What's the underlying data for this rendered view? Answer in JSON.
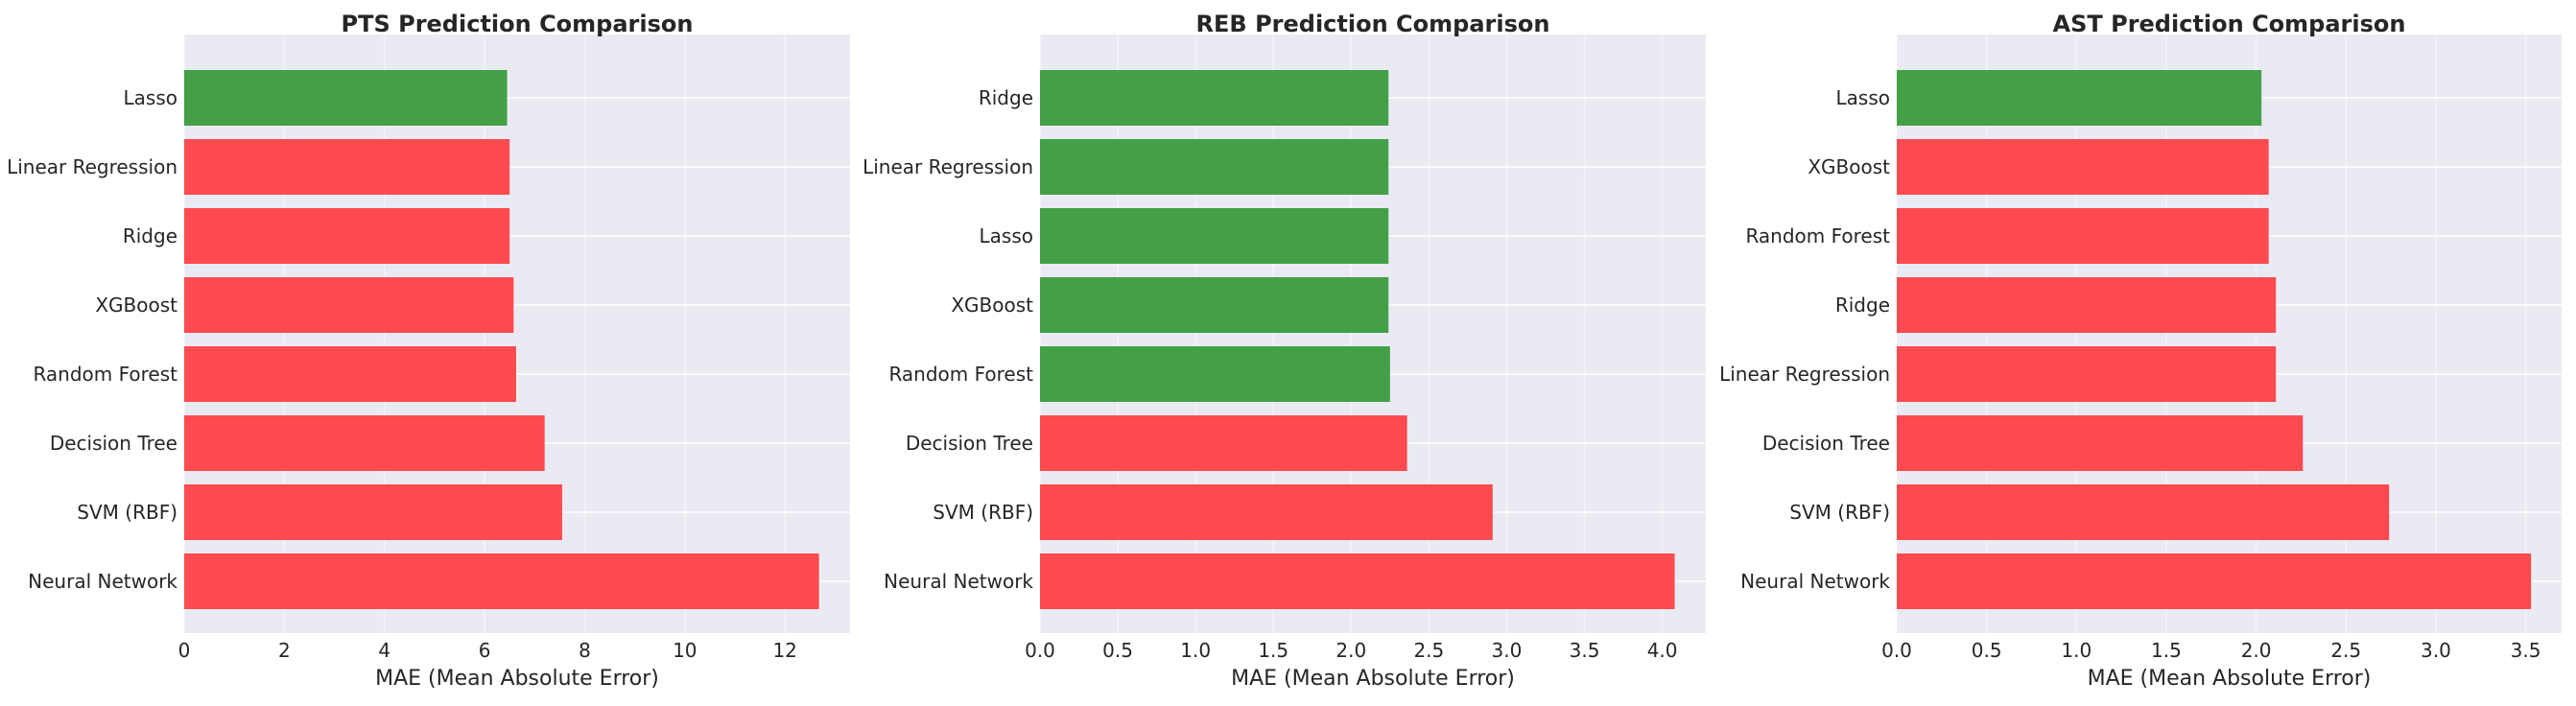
{
  "colors": {
    "best": "#43a047",
    "other": "#ff4a4f",
    "plot_bg": "#eaeaf2",
    "grid": "#ffffff",
    "text": "#262626"
  },
  "chart_data": [
    {
      "type": "bar",
      "orientation": "horizontal",
      "title": "PTS Prediction Comparison",
      "xlabel": "MAE (Mean Absolute Error)",
      "categories": [
        "Lasso",
        "Linear Regression",
        "Ridge",
        "XGBoost",
        "Random Forest",
        "Decision Tree",
        "SVM (RBF)",
        "Neural Network"
      ],
      "values": [
        6.45,
        6.5,
        6.5,
        6.58,
        6.63,
        7.2,
        7.55,
        12.68
      ],
      "highlight": [
        true,
        false,
        false,
        false,
        false,
        false,
        false,
        false
      ],
      "xlim": [
        0,
        13.3
      ],
      "xticks": [
        0,
        2,
        4,
        6,
        8,
        10,
        12
      ],
      "xtick_labels": [
        "0",
        "2",
        "4",
        "6",
        "8",
        "10",
        "12"
      ],
      "grid": true
    },
    {
      "type": "bar",
      "orientation": "horizontal",
      "title": "REB Prediction Comparison",
      "xlabel": "MAE (Mean Absolute Error)",
      "categories": [
        "Ridge",
        "Linear Regression",
        "Lasso",
        "XGBoost",
        "Random Forest",
        "Decision Tree",
        "SVM (RBF)",
        "Neural Network"
      ],
      "values": [
        2.24,
        2.24,
        2.24,
        2.24,
        2.25,
        2.36,
        2.91,
        4.08
      ],
      "highlight": [
        true,
        true,
        true,
        true,
        true,
        false,
        false,
        false
      ],
      "xlim": [
        0,
        4.28
      ],
      "xticks": [
        0,
        0.5,
        1.0,
        1.5,
        2.0,
        2.5,
        3.0,
        3.5,
        4.0
      ],
      "xtick_labels": [
        "0.0",
        "0.5",
        "1.0",
        "1.5",
        "2.0",
        "2.5",
        "3.0",
        "3.5",
        "4.0"
      ],
      "grid": true
    },
    {
      "type": "bar",
      "orientation": "horizontal",
      "title": "AST Prediction Comparison",
      "xlabel": "MAE (Mean Absolute Error)",
      "categories": [
        "Lasso",
        "XGBoost",
        "Random Forest",
        "Ridge",
        "Linear Regression",
        "Decision Tree",
        "SVM (RBF)",
        "Neural Network"
      ],
      "values": [
        2.03,
        2.07,
        2.07,
        2.11,
        2.11,
        2.26,
        2.74,
        3.53
      ],
      "highlight": [
        true,
        false,
        false,
        false,
        false,
        false,
        false,
        false
      ],
      "xlim": [
        0,
        3.7
      ],
      "xticks": [
        0,
        0.5,
        1.0,
        1.5,
        2.0,
        2.5,
        3.0,
        3.5
      ],
      "xtick_labels": [
        "0.0",
        "0.5",
        "1.0",
        "1.5",
        "2.0",
        "2.5",
        "3.0",
        "3.5"
      ],
      "grid": true
    }
  ]
}
